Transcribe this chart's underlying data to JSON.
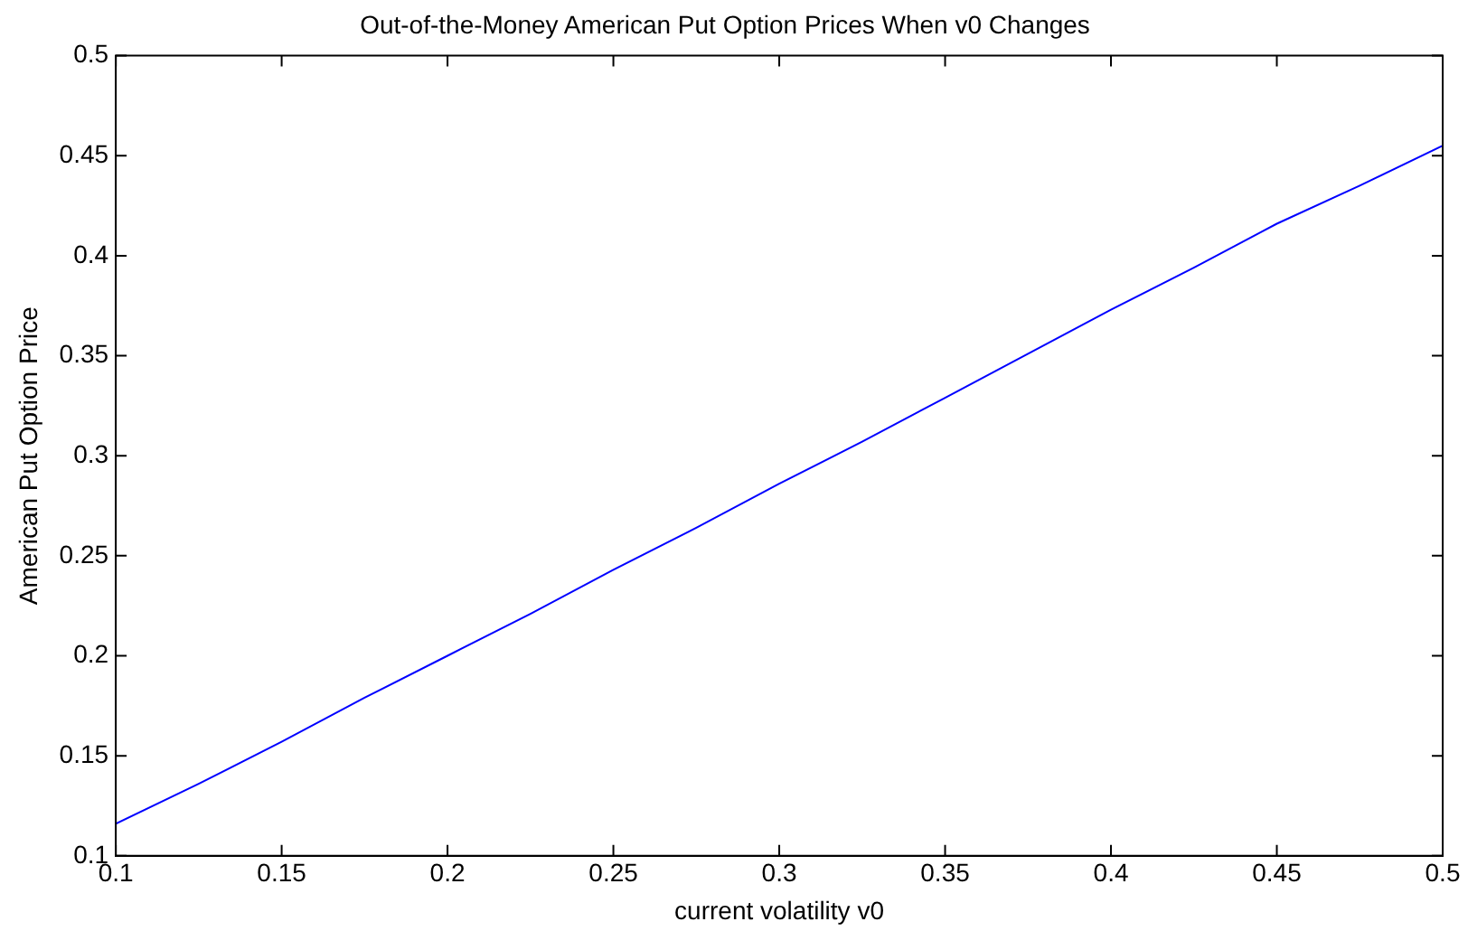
{
  "chart_data": {
    "type": "line",
    "title": "Out-of-the-Money American Put Option Prices When v0 Changes",
    "xlabel": "current volatility v0",
    "ylabel": "American Put Option Price",
    "x": [
      0.1,
      0.125,
      0.15,
      0.175,
      0.2,
      0.225,
      0.25,
      0.275,
      0.3,
      0.325,
      0.35,
      0.375,
      0.4,
      0.425,
      0.45,
      0.475,
      0.5
    ],
    "series": [
      {
        "color": "#0000ff",
        "values": [
          0.116,
          0.136,
          0.157,
          0.179,
          0.2,
          0.221,
          0.243,
          0.264,
          0.286,
          0.307,
          0.329,
          0.351,
          0.373,
          0.394,
          0.416,
          0.435,
          0.455
        ]
      }
    ],
    "xlim": [
      0.1,
      0.5
    ],
    "xticks": [
      0.1,
      0.15,
      0.2,
      0.25,
      0.3,
      0.35,
      0.4,
      0.45,
      0.5
    ],
    "ylim": [
      0.1,
      0.5
    ],
    "yticks": [
      0.1,
      0.15,
      0.2,
      0.25,
      0.3,
      0.35,
      0.4,
      0.45,
      0.5
    ],
    "grid": false,
    "legend": false,
    "marker": "none",
    "line_style": "solid"
  }
}
